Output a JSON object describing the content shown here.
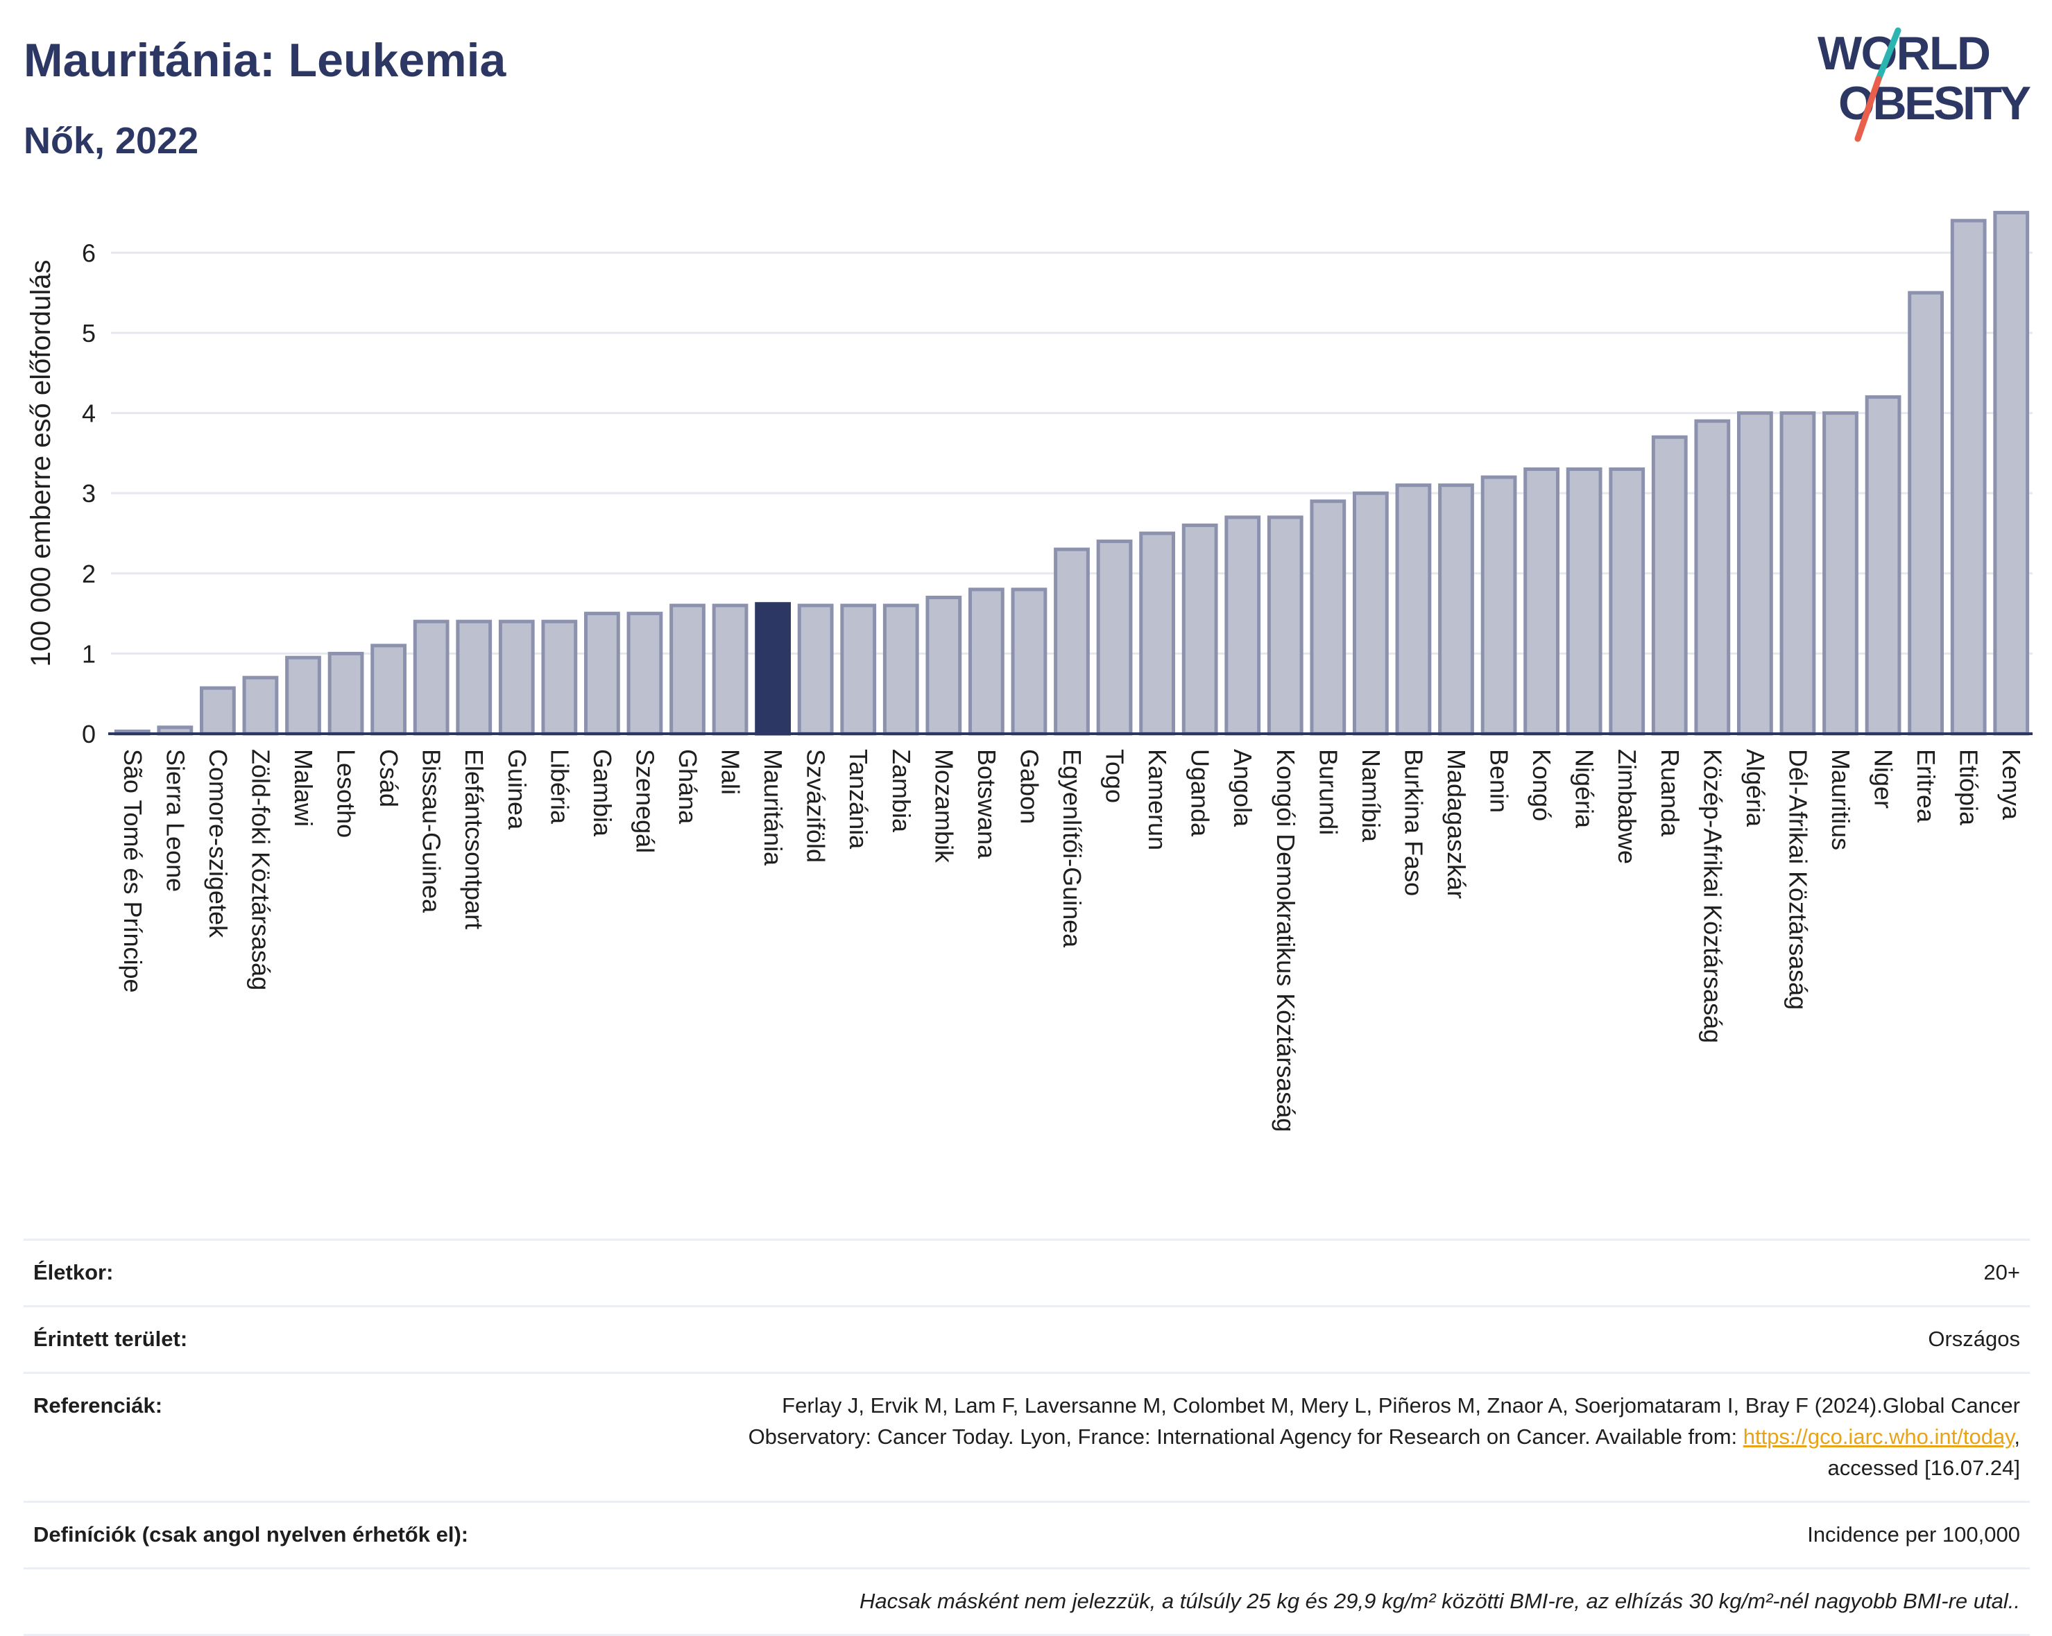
{
  "header": {
    "title": "Mauritánia: Leukemia",
    "subtitle": "Nők, 2022"
  },
  "logo": {
    "line1": "WORLD",
    "line2": "OBESITY"
  },
  "colors": {
    "bar": "#bcc0cf",
    "bar_border": "#8c92ae",
    "highlight": "#2c3764",
    "grid": "#e6e8ef",
    "axis": "#2c3764",
    "link": "#e8a317",
    "logo_teal": "#2ab5b0",
    "logo_coral": "#e8604c"
  },
  "chart_data": {
    "type": "bar",
    "ylabel": "100 000 emberre eső előfordulás",
    "ylim": [
      0,
      6.6
    ],
    "yticks": [
      0,
      1,
      2,
      3,
      4,
      5,
      6
    ],
    "grid": true,
    "highlight": "Mauritánia",
    "categories": [
      "São Tomé és Príncipe",
      "Sierra Leone",
      "Comore-szigetek",
      "Zöld-foki Köztársaság",
      "Malawi",
      "Lesotho",
      "Csád",
      "Bissau-Guinea",
      "Elefántcsontpart",
      "Guinea",
      "Libéria",
      "Gambia",
      "Szenegál",
      "Ghána",
      "Mali",
      "Mauritánia",
      "Szváziföld",
      "Tanzánia",
      "Zambia",
      "Mozambik",
      "Botswana",
      "Gabon",
      "Egyenlítői-Guinea",
      "Togo",
      "Kamerun",
      "Uganda",
      "Angola",
      "Kongói Demokratikus Köztársaság",
      "Burundi",
      "Namíbia",
      "Burkina Faso",
      "Madagaszkár",
      "Benin",
      "Kongó",
      "Nigéria",
      "Zimbabwe",
      "Ruanda",
      "Közép-Afrikai Köztársaság",
      "Algéria",
      "Dél-Afrikai Köztársaság",
      "Mauritius",
      "Niger",
      "Eritrea",
      "Etiópia",
      "Kenya"
    ],
    "values": [
      0.03,
      0.08,
      0.57,
      0.7,
      0.95,
      1.0,
      1.1,
      1.4,
      1.4,
      1.4,
      1.4,
      1.5,
      1.5,
      1.6,
      1.6,
      1.62,
      1.6,
      1.6,
      1.6,
      1.7,
      1.8,
      1.8,
      2.3,
      2.4,
      2.5,
      2.6,
      2.7,
      2.7,
      2.9,
      3.0,
      3.1,
      3.1,
      3.2,
      3.3,
      3.3,
      3.3,
      3.7,
      3.9,
      4.0,
      4.0,
      4.0,
      4.2,
      5.5,
      6.4,
      6.5
    ]
  },
  "info": {
    "age_label": "Életkor:",
    "age_value": "20+",
    "area_label": "Érintett terület:",
    "area_value": "Országos",
    "refs_label": "Referenciák:",
    "refs_text": "Ferlay J, Ervik M, Lam F, Laversanne M, Colombet M, Mery L, Piñeros M, Znaor A, Soerjomataram I, Bray F (2024).Global Cancer Observatory: Cancer Today. Lyon, France: International Agency for Research on Cancer. Available from:",
    "refs_link": "https://gco.iarc.who.int/today",
    "refs_suffix": ", accessed [16.07.24]",
    "defs_label": "Definíciók (csak angol nyelven érhetők el):",
    "defs_value": "Incidence per 100,000",
    "note": "Hacsak másként nem jelezzük, a túlsúly 25 kg és 29,9 kg/m² közötti BMI-re, az elhízás 30 kg/m²-nél nagyobb BMI-re utal.."
  }
}
